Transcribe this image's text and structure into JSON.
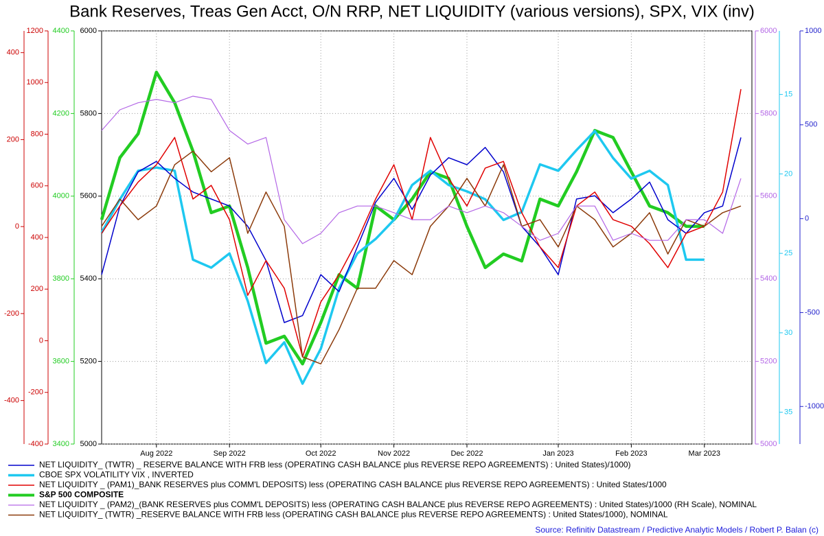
{
  "chart_data": {
    "type": "line",
    "title": "Bank Reserves, Treas Gen Acct, O/N RRP, NET LIQUIDITY (various versions), SPX, VIX (inv)",
    "source": "Source: Refinitiv Datastream / Predictive Analytic Models / Robert P. Balan (c)",
    "grid": true,
    "categories": [
      null,
      null,
      null,
      "Aug 2022",
      null,
      null,
      null,
      "Sep 2022",
      null,
      null,
      null,
      null,
      "Oct 2022",
      null,
      null,
      null,
      "Nov 2022",
      null,
      null,
      null,
      "Dec 2022",
      null,
      null,
      null,
      null,
      "Jan 2023",
      null,
      null,
      null,
      "Feb 2023",
      null,
      null,
      null,
      "Mar 2023",
      null,
      null
    ],
    "axes": [
      {
        "side": "left",
        "color": "#cc0000",
        "ylim": [
          -500,
          450
        ],
        "yticks": [
          400,
          200,
          0,
          -200,
          -400
        ]
      },
      {
        "side": "left",
        "color": "#cc0000",
        "ylim": [
          -400,
          1200
        ],
        "yticks": [
          1200,
          1000,
          800,
          600,
          400,
          200,
          0,
          -200,
          -400
        ]
      },
      {
        "side": "left",
        "color": "#22cc22",
        "ylim": [
          3400,
          4400
        ],
        "yticks": [
          4400,
          4200,
          4000,
          3800,
          3600,
          3400
        ]
      },
      {
        "side": "left",
        "color": "#000000",
        "ylim": [
          5000,
          6000
        ],
        "yticks": [
          6000,
          5800,
          5600,
          5400,
          5200,
          5000
        ]
      },
      {
        "side": "right",
        "color": "#b366e6",
        "ylim": [
          5000,
          6000
        ],
        "yticks": [
          6000,
          5800,
          5600,
          5400,
          5200,
          5000
        ]
      },
      {
        "side": "right",
        "color": "#1ec8f0",
        "ylim": [
          37,
          11
        ],
        "yticks": [
          15,
          20,
          25,
          30,
          35
        ]
      },
      {
        "side": "right",
        "color": "#2222cc",
        "ylim": [
          -1200,
          1000
        ],
        "yticks": [
          1000,
          500,
          0,
          -500,
          -1000
        ]
      }
    ],
    "series": [
      {
        "name": "NET LIQUIDITY_ (TWTR) _ RESERVE BALANCE WITH FRB less (OPERATING CASH BALANCE plus REVERSE REPO AGREEMENTS) : United States)/1000)",
        "color": "#0000cc",
        "line_width": 1.5,
        "axis": 3,
        "values": [
          5410,
          5576,
          5659,
          5684,
          5643,
          5610,
          5593,
          5576,
          5527,
          5444,
          5294,
          5311,
          5410,
          5369,
          5477,
          5585,
          5643,
          5568,
          5651,
          5693,
          5676,
          5718,
          5659,
          5527,
          5477,
          5410,
          5593,
          5601,
          5560,
          5593,
          5634,
          5543,
          5510,
          5560,
          5576,
          5742
        ]
      },
      {
        "name": "CBOE SPX VOLATILITY VIX , INVERTED",
        "color": "#1ec8f0",
        "line_width": 3.5,
        "axis": 5,
        "values": [
          23.7,
          21.6,
          19.8,
          19.6,
          19.8,
          25.4,
          25.9,
          25.0,
          28.0,
          31.9,
          30.6,
          33.2,
          31.0,
          27.2,
          25.0,
          24.1,
          22.9,
          20.7,
          19.8,
          20.7,
          21.1,
          21.6,
          22.9,
          22.4,
          19.4,
          19.8,
          18.5,
          17.3,
          19.0,
          20.3,
          19.8,
          20.7,
          25.4,
          25.4,
          null,
          null
        ]
      },
      {
        "name": "NET LIQUIDITY _ (PAM1)_BANK RESERVES plus COMM'L DEPOSITS) less (OPERATING CASH BALANCE plus REVERSE REPO AGREEMENTS) : United States/1000",
        "color": "#e00000",
        "line_width": 1.5,
        "axis": 3,
        "values": [
          5510,
          5576,
          5634,
          5676,
          5742,
          5593,
          5626,
          5543,
          5360,
          5444,
          5377,
          5211,
          5344,
          5410,
          5493,
          5593,
          5676,
          5543,
          5742,
          5643,
          5576,
          5668,
          5684,
          5560,
          5477,
          5427,
          5576,
          5610,
          5543,
          5527,
          5485,
          5427,
          5510,
          5527,
          5610,
          5859
        ]
      },
      {
        "name": "S&P 500 COMPOSITE",
        "color": "#22cc22",
        "line_width": 4.5,
        "axis": 2,
        "legend_bold": true,
        "values": [
          3943,
          4093,
          4151,
          4300,
          4226,
          4109,
          3960,
          3976,
          3827,
          3644,
          3661,
          3594,
          3694,
          3810,
          3777,
          3976,
          3943,
          3993,
          4059,
          4043,
          3927,
          3827,
          3860,
          3843,
          3993,
          3976,
          4059,
          4159,
          4142,
          4059,
          3976,
          3960,
          3927,
          3927,
          null,
          null
        ]
      },
      {
        "name": "NET LIQUIDITY _ (PAM2)_(BANK RESERVES plus COMM'L DEPOSITS) less (OPERATING CASH BALANCE plus REVERSE REPO AGREEMENTS) : United States)/1000 (RH Scale), NOMINAL",
        "color": "#b366e6",
        "line_width": 1.2,
        "axis": 4,
        "values": [
          5759,
          5809,
          5826,
          5834,
          5826,
          5842,
          5834,
          5759,
          5726,
          5742,
          5543,
          5485,
          5510,
          5560,
          5576,
          5576,
          5560,
          5543,
          5543,
          5576,
          5560,
          5576,
          5560,
          5527,
          5493,
          5510,
          5576,
          5576,
          5493,
          5510,
          5493,
          5493,
          5543,
          5543,
          5510,
          5643
        ]
      },
      {
        "name": "NET LIQUIDITY_ (TWTR) _RESERVE BALANCE WITH FRB less (OPERATING CASH BALANCE plus REVERSE REPO AGREEMENTS) : United States/1000), NOMINAL",
        "color": "#8b3a0a",
        "line_width": 1.5,
        "axis": 3,
        "values": [
          5527,
          5593,
          5543,
          5576,
          5676,
          5709,
          5659,
          5693,
          5510,
          5610,
          5527,
          5211,
          5194,
          5277,
          5377,
          5377,
          5444,
          5410,
          5527,
          5576,
          5643,
          5576,
          5676,
          5527,
          5543,
          5477,
          5576,
          5543,
          5477,
          5510,
          5560,
          5460,
          5543,
          5527,
          5560,
          5576
        ]
      }
    ]
  }
}
